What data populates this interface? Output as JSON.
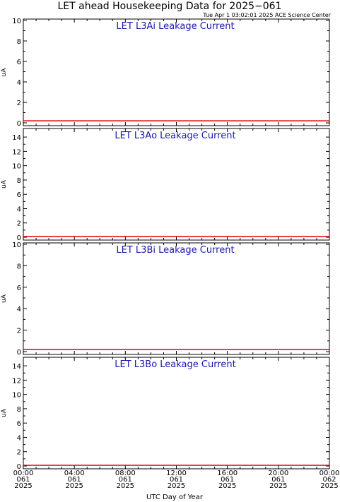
{
  "figure": {
    "title": "LET ahead Housekeeping Data for 2025−061",
    "timestamp": "Tue Apr  1 03:02:01 2025 ACE Science Center",
    "xlabel": "UTC Day of Year"
  },
  "colors": {
    "axes": "#000000",
    "panel_title": "#1a1aa8",
    "series_line": "#e00000"
  },
  "chart_data": [
    {
      "type": "line",
      "title": "LET L3Ai Leakage Current",
      "ylabel": "uA",
      "ylim": [
        0,
        10
      ],
      "yticks": [
        0,
        2,
        4,
        6,
        8,
        10
      ],
      "xlim": [
        "00:00 061",
        "00:00 062"
      ],
      "series": [
        {
          "x": [
            "00:00",
            "24:00"
          ],
          "y": [
            0.2,
            0.2
          ]
        }
      ]
    },
    {
      "type": "line",
      "title": "LET L3Ao Leakage Current",
      "ylabel": "uA",
      "ylim": [
        0,
        15
      ],
      "yticks": [
        0,
        2,
        4,
        6,
        8,
        10,
        12,
        14
      ],
      "xlim": [
        "00:00 061",
        "00:00 062"
      ],
      "series": [
        {
          "x": [
            "00:00",
            "24:00"
          ],
          "y": [
            0.1,
            0.1
          ]
        }
      ]
    },
    {
      "type": "line",
      "title": "LET L3Bi Leakage Current",
      "ylabel": "uA",
      "ylim": [
        0,
        10
      ],
      "yticks": [
        0,
        2,
        4,
        6,
        8,
        10
      ],
      "xlim": [
        "00:00 061",
        "00:00 062"
      ],
      "series": [
        {
          "x": [
            "00:00",
            "24:00"
          ],
          "y": [
            0.2,
            0.2
          ]
        }
      ]
    },
    {
      "type": "line",
      "title": "LET L3Bo Leakage Current",
      "ylabel": "uA",
      "ylim": [
        0,
        15
      ],
      "yticks": [
        0,
        2,
        4,
        6,
        8,
        10,
        12,
        14
      ],
      "xlim": [
        "00:00 061",
        "00:00 062"
      ],
      "series": [
        {
          "x": [
            "00:00",
            "24:00"
          ],
          "y": [
            0.1,
            0.1
          ]
        }
      ]
    }
  ],
  "xaxis": {
    "ticks": [
      {
        "time": "00:00",
        "day": "061",
        "year": "2025"
      },
      {
        "time": "04:00",
        "day": "061",
        "year": "2025"
      },
      {
        "time": "08:00",
        "day": "061",
        "year": "2025"
      },
      {
        "time": "12:00",
        "day": "061",
        "year": "2025"
      },
      {
        "time": "16:00",
        "day": "061",
        "year": "2025"
      },
      {
        "time": "20:00",
        "day": "061",
        "year": "2025"
      },
      {
        "time": "00:00",
        "day": "062",
        "year": "2025"
      }
    ]
  }
}
